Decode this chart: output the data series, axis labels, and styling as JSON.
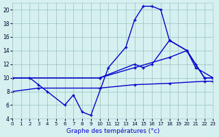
{
  "background_color": "#d6f0f0",
  "grid_color": "#a0c8c8",
  "line_color": "#0000cc",
  "xlabel": "Graphe des températures (°c)",
  "xlim": [
    0,
    23
  ],
  "ylim": [
    4,
    21
  ],
  "yticks": [
    4,
    6,
    8,
    10,
    12,
    14,
    16,
    18,
    20
  ],
  "xticks": [
    0,
    1,
    2,
    3,
    4,
    5,
    6,
    7,
    8,
    9,
    10,
    11,
    12,
    13,
    14,
    15,
    16,
    17,
    18,
    19,
    20,
    21,
    22,
    23
  ],
  "curve1_x": [
    0,
    2,
    3,
    4,
    6,
    7,
    8,
    9,
    11,
    13,
    14,
    15,
    16,
    17,
    18,
    20,
    21,
    23
  ],
  "curve1_y": [
    10,
    10,
    9,
    8,
    6,
    7.5,
    5,
    4.5,
    11.5,
    14.5,
    18.5,
    20.5,
    20.5,
    20,
    15.5,
    14,
    11.5,
    10
  ],
  "curve2_x": [
    0,
    10,
    14,
    15,
    16,
    18,
    20,
    21,
    22,
    23
  ],
  "curve2_y": [
    10,
    10,
    12,
    11.5,
    12,
    15.5,
    14,
    12,
    10,
    10
  ],
  "curve3_x": [
    0,
    10,
    14,
    18,
    20,
    22,
    23
  ],
  "curve3_y": [
    10,
    10,
    11.5,
    13,
    14,
    10,
    10
  ],
  "curve4_x": [
    0,
    3,
    10,
    14,
    18,
    22,
    23
  ],
  "curve4_y": [
    8,
    8.5,
    8.5,
    9,
    9.2,
    9.5,
    9.5
  ]
}
